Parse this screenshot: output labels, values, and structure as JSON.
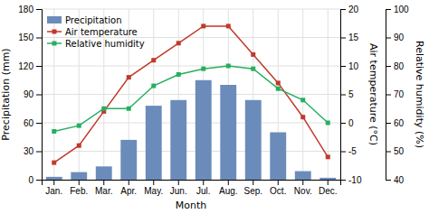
{
  "chart_data": {
    "type": "bar",
    "x_label": "Month",
    "y_label": "Precipitation (mm)",
    "y2_label": "Air temperature (°C)",
    "y3_label": "Relative humidity (%)",
    "categories": [
      "Jan.",
      "Feb.",
      "Mar.",
      "Apr.",
      "May.",
      "Jun.",
      "Jul.",
      "Aug.",
      "Sep.",
      "Oct.",
      "Nov.",
      "Dec."
    ],
    "series": [
      {
        "name": "Precipitation",
        "type": "bar",
        "color": "#6b8cba",
        "values": [
          3,
          8,
          14,
          42,
          78,
          84,
          105,
          100,
          84,
          50,
          9,
          2
        ]
      },
      {
        "name": "Air temperature",
        "type": "line",
        "color": "#c0392b",
        "marker": "square",
        "axis": "y2",
        "values": [
          -7,
          -4,
          2,
          8,
          11,
          14,
          17,
          17,
          12,
          7,
          1,
          -6
        ]
      },
      {
        "name": "Relative humidity",
        "type": "line",
        "color": "#27ae60",
        "marker": "square",
        "axis": "y3",
        "values": [
          57,
          59,
          65,
          65,
          73,
          77,
          79,
          80,
          79,
          72,
          68,
          60
        ]
      }
    ],
    "ylim": [
      0,
      180
    ],
    "yticks": [
      0,
      30,
      60,
      90,
      120,
      150,
      180
    ],
    "y2lim": [
      -10,
      20
    ],
    "y2ticks": [
      -10,
      -5,
      0,
      5,
      10,
      15,
      20
    ],
    "y3lim": [
      40,
      100
    ],
    "y3ticks": [
      40,
      50,
      60,
      70,
      80,
      90,
      100
    ],
    "grid": true,
    "legend": "upper left"
  }
}
